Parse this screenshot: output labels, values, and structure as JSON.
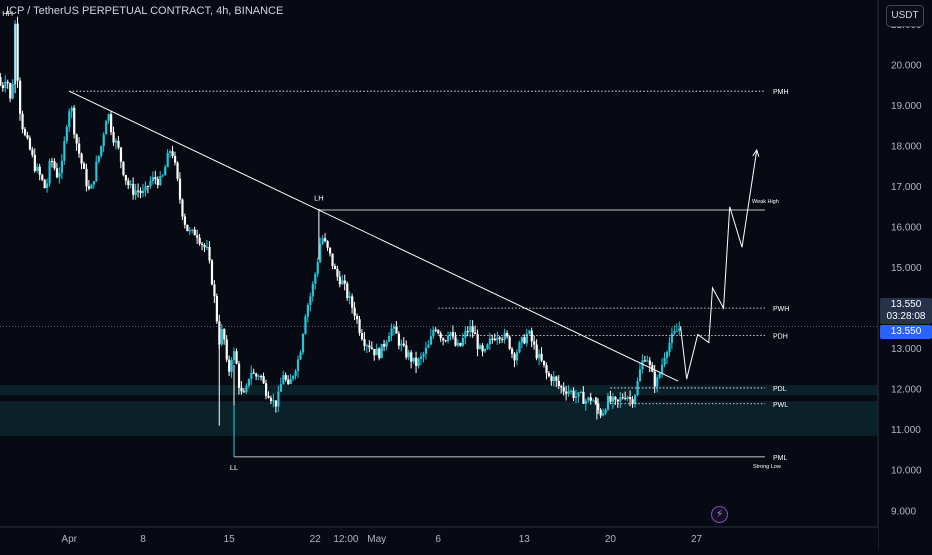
{
  "header": {
    "title": "ICP / TetherUS PERPETUAL CONTRACT, 4h, BINANCE",
    "currency": "USDT"
  },
  "price_box": {
    "price": "13.550",
    "countdown": "03:28:08",
    "last_price": "13.550"
  },
  "event_icon": {
    "glyph": "⚡",
    "icon": "lightning-icon"
  },
  "colors": {
    "background": "#070a12",
    "bull": "#26c6da",
    "bear": "#ffffff",
    "line": "#ffffff",
    "zone": "#0d2a33",
    "accent": "#2962ff"
  },
  "chart_data": {
    "type": "candlestick",
    "title": "ICP / TetherUS PERPETUAL CONTRACT, 4h, BINANCE",
    "ylim": [
      8.6,
      21.6
    ],
    "x_ticks": [
      {
        "label": "Apr",
        "x": 4
      },
      {
        "label": "8",
        "x": 10
      },
      {
        "label": "15",
        "x": 17
      },
      {
        "label": "22",
        "x": 24
      },
      {
        "label": "12:00",
        "x": 26.5
      },
      {
        "label": "May",
        "x": 29
      },
      {
        "label": "6",
        "x": 34
      },
      {
        "label": "13",
        "x": 41
      },
      {
        "label": "20",
        "x": 48
      },
      {
        "label": "27",
        "x": 55
      }
    ],
    "y_ticks": [
      9.0,
      10.0,
      11.0,
      12.0,
      13.0,
      14.0,
      15.0,
      16.0,
      17.0,
      18.0,
      19.0,
      20.0,
      21.0
    ],
    "price_anchors": [
      [
        -1.8,
        19.7
      ],
      [
        -1.5,
        19.4
      ],
      [
        -1.1,
        19.8
      ],
      [
        -0.7,
        18.9
      ],
      [
        -0.4,
        21.0
      ],
      [
        -0.1,
        19.1
      ],
      [
        0.3,
        18.3
      ],
      [
        0.8,
        17.9
      ],
      [
        1.2,
        17.5
      ],
      [
        1.7,
        17.2
      ],
      [
        2.1,
        16.9
      ],
      [
        2.5,
        17.7
      ],
      [
        3.0,
        17.3
      ],
      [
        3.4,
        17.5
      ],
      [
        3.8,
        18.6
      ],
      [
        4.1,
        19.1
      ],
      [
        4.5,
        18.2
      ],
      [
        4.9,
        17.7
      ],
      [
        5.3,
        17.2
      ],
      [
        5.7,
        16.8
      ],
      [
        6.1,
        17.4
      ],
      [
        6.6,
        18.0
      ],
      [
        7.1,
        18.9
      ],
      [
        7.5,
        18.3
      ],
      [
        8.0,
        17.9
      ],
      [
        8.4,
        17.4
      ],
      [
        8.7,
        17.1
      ],
      [
        9.1,
        16.9
      ],
      [
        9.6,
        16.9
      ],
      [
        10.1,
        16.8
      ],
      [
        10.5,
        17.1
      ],
      [
        11.0,
        17.2
      ],
      [
        11.5,
        17.1
      ],
      [
        11.9,
        17.6
      ],
      [
        12.3,
        18.0
      ],
      [
        12.7,
        17.3
      ],
      [
        13.1,
        16.5
      ],
      [
        13.5,
        16.0
      ],
      [
        13.9,
        15.8
      ],
      [
        14.3,
        15.9
      ],
      [
        14.8,
        15.6
      ],
      [
        15.2,
        15.4
      ],
      [
        15.6,
        14.7
      ],
      [
        15.9,
        14.0
      ],
      [
        16.2,
        13.2
      ],
      [
        16.5,
        13.5
      ],
      [
        16.9,
        12.3
      ],
      [
        17.3,
        13.0
      ],
      [
        17.6,
        12.6
      ],
      [
        17.9,
        11.9
      ],
      [
        18.3,
        11.8
      ],
      [
        18.7,
        12.5
      ],
      [
        19.1,
        12.3
      ],
      [
        19.5,
        12.4
      ],
      [
        19.9,
        12.0
      ],
      [
        20.3,
        11.9
      ],
      [
        20.7,
        11.6
      ],
      [
        21.0,
        11.8
      ],
      [
        21.4,
        12.4
      ],
      [
        21.8,
        12.0
      ],
      [
        22.3,
        12.5
      ],
      [
        22.7,
        12.8
      ],
      [
        23.2,
        13.9
      ],
      [
        23.7,
        14.4
      ],
      [
        24.1,
        15.0
      ],
      [
        24.5,
        15.8
      ],
      [
        24.9,
        15.5
      ],
      [
        25.3,
        15.2
      ],
      [
        25.7,
        14.8
      ],
      [
        26.1,
        14.7
      ],
      [
        26.5,
        14.4
      ],
      [
        26.9,
        14.1
      ],
      [
        27.2,
        13.9
      ],
      [
        27.6,
        13.5
      ],
      [
        28.0,
        13.2
      ],
      [
        28.4,
        13.1
      ],
      [
        28.9,
        12.9
      ],
      [
        29.3,
        12.9
      ],
      [
        29.7,
        13.2
      ],
      [
        30.1,
        13.5
      ],
      [
        30.5,
        13.4
      ],
      [
        30.9,
        13.1
      ],
      [
        31.3,
        12.9
      ],
      [
        31.7,
        12.8
      ],
      [
        32.1,
        12.6
      ],
      [
        32.5,
        12.7
      ],
      [
        32.9,
        12.9
      ],
      [
        33.3,
        13.1
      ],
      [
        33.7,
        13.6
      ],
      [
        34.1,
        13.4
      ],
      [
        34.5,
        13.2
      ],
      [
        34.9,
        13.5
      ],
      [
        35.3,
        13.1
      ],
      [
        35.7,
        13.0
      ],
      [
        36.1,
        13.3
      ],
      [
        36.5,
        13.5
      ],
      [
        36.9,
        13.4
      ],
      [
        37.3,
        13.0
      ],
      [
        37.7,
        12.8
      ],
      [
        38.1,
        13.1
      ],
      [
        38.5,
        13.3
      ],
      [
        38.9,
        13.4
      ],
      [
        39.3,
        13.3
      ],
      [
        39.7,
        13.2
      ],
      [
        40.1,
        12.8
      ],
      [
        40.5,
        13.0
      ],
      [
        40.9,
        13.2
      ],
      [
        41.3,
        13.4
      ],
      [
        41.7,
        13.1
      ],
      [
        42.1,
        12.8
      ],
      [
        42.5,
        12.6
      ],
      [
        42.9,
        12.3
      ],
      [
        43.3,
        12.3
      ],
      [
        43.7,
        12.1
      ],
      [
        44.1,
        12.0
      ],
      [
        44.5,
        12.0
      ],
      [
        44.9,
        11.9
      ],
      [
        45.3,
        11.8
      ],
      [
        45.7,
        11.8
      ],
      [
        46.1,
        11.7
      ],
      [
        46.5,
        11.8
      ],
      [
        46.9,
        11.5
      ],
      [
        47.3,
        11.4
      ],
      [
        47.7,
        11.7
      ],
      [
        48.1,
        11.7
      ],
      [
        48.5,
        11.6
      ],
      [
        48.9,
        11.8
      ],
      [
        49.3,
        11.9
      ],
      [
        49.7,
        11.7
      ],
      [
        50.1,
        12.0
      ],
      [
        50.5,
        12.6
      ],
      [
        50.9,
        12.9
      ],
      [
        51.3,
        12.4
      ],
      [
        51.7,
        12.1
      ],
      [
        52.1,
        12.5
      ],
      [
        52.5,
        13.0
      ],
      [
        52.9,
        13.2
      ],
      [
        53.3,
        13.4
      ],
      [
        53.7,
        13.55
      ]
    ],
    "horizontal_levels": [
      {
        "name": "PMH",
        "price": 19.35,
        "from_x": 4,
        "style": "dotted"
      },
      {
        "name": "Weak High",
        "price": 16.42,
        "from_x": 24.3,
        "style": "solid"
      },
      {
        "name": "PWH",
        "price": 14.0,
        "from_x": 34,
        "style": "dotted"
      },
      {
        "name": "PDH",
        "price": 13.32,
        "from_x": 34,
        "style": "dotted"
      },
      {
        "name": "PDL",
        "price": 12.03,
        "from_x": 48,
        "style": "dotted"
      },
      {
        "name": "PWL",
        "price": 11.64,
        "from_x": 48,
        "style": "dotted"
      },
      {
        "name": "PML",
        "price": 10.33,
        "from_x": 17.4,
        "style": "solid"
      }
    ],
    "level_labels": {
      "PMH": "PMH",
      "Weak High": "Weak High",
      "PWH": "PWH",
      "PDH": "PDH",
      "PDL": "PDL",
      "PWL": "PWL",
      "PML": "PML",
      "Strong Low": "Strong Low"
    },
    "swing_labels": [
      {
        "text": "HH",
        "x": -1.0,
        "price": 21.2
      },
      {
        "text": "LH",
        "x": 24.3,
        "price": 16.65
      },
      {
        "text": "LL",
        "x": 17.4,
        "price": 10.0
      }
    ],
    "trendline": [
      [
        4,
        19.35
      ],
      [
        53.5,
        12.2
      ]
    ],
    "zones": [
      {
        "from": 10.85,
        "to": 11.7
      },
      {
        "from": 11.85,
        "to": 12.1
      }
    ],
    "projection_path": [
      [
        53.7,
        13.55
      ],
      [
        54.2,
        12.25
      ],
      [
        55.1,
        13.35
      ],
      [
        56.0,
        13.15
      ],
      [
        56.3,
        14.5
      ],
      [
        57.2,
        14.0
      ],
      [
        57.7,
        16.5
      ],
      [
        58.7,
        15.5
      ],
      [
        59.9,
        17.9
      ]
    ],
    "current_price": 13.55
  }
}
